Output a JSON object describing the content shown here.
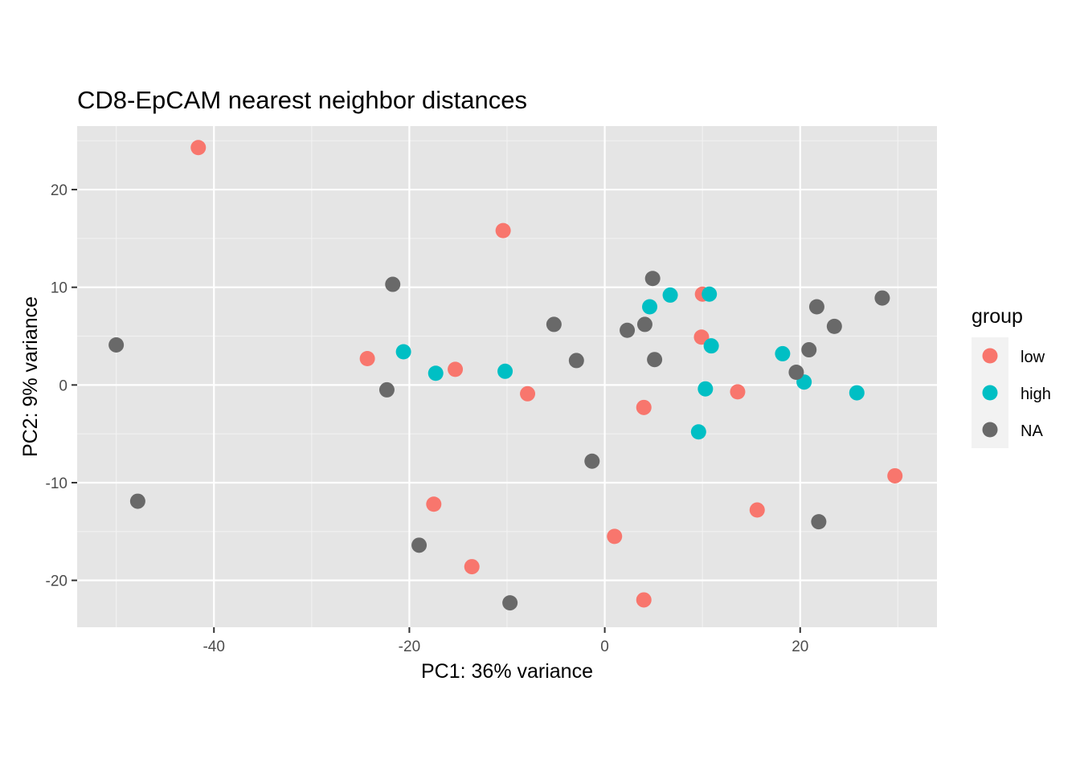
{
  "chart_data": {
    "type": "scatter",
    "title": "CD8-EpCAM nearest neighbor distances",
    "xlabel": "PC1: 36% variance",
    "ylabel": "PC2: 9% variance",
    "xlim": [
      -54,
      34
    ],
    "ylim": [
      -24.8,
      26.5
    ],
    "x_ticks": [
      -40,
      -20,
      0,
      20
    ],
    "y_ticks": [
      -20,
      -10,
      0,
      10,
      20
    ],
    "grid": true,
    "legend": {
      "title": "group",
      "position": "right"
    },
    "background": "#e5e5e5",
    "series": [
      {
        "name": "low",
        "color": "#f8766d",
        "points": [
          [
            -41.6,
            24.3
          ],
          [
            -10.4,
            15.8
          ],
          [
            -24.3,
            2.7
          ],
          [
            -15.3,
            1.6
          ],
          [
            -7.9,
            -0.9
          ],
          [
            10.0,
            9.3
          ],
          [
            9.9,
            4.9
          ],
          [
            13.6,
            -0.7
          ],
          [
            4.0,
            -2.3
          ],
          [
            -17.5,
            -12.2
          ],
          [
            -13.6,
            -18.6
          ],
          [
            1.0,
            -15.5
          ],
          [
            4.0,
            -22.0
          ],
          [
            15.6,
            -12.8
          ],
          [
            29.7,
            -9.3
          ]
        ]
      },
      {
        "name": "high",
        "color": "#00bfc4",
        "points": [
          [
            -20.6,
            3.4
          ],
          [
            -17.3,
            1.2
          ],
          [
            -10.2,
            1.4
          ],
          [
            4.6,
            8.0
          ],
          [
            6.7,
            9.2
          ],
          [
            10.7,
            9.3
          ],
          [
            10.9,
            4.0
          ],
          [
            10.3,
            -0.4
          ],
          [
            9.6,
            -4.8
          ],
          [
            18.2,
            3.2
          ],
          [
            20.4,
            0.3
          ],
          [
            25.8,
            -0.8
          ]
        ]
      },
      {
        "name": "NA",
        "color": "#696969",
        "points": [
          [
            -50.0,
            4.1
          ],
          [
            -47.8,
            -11.9
          ],
          [
            -21.7,
            10.3
          ],
          [
            -22.3,
            -0.5
          ],
          [
            -19.0,
            -16.4
          ],
          [
            -9.7,
            -22.3
          ],
          [
            -5.2,
            6.2
          ],
          [
            -2.9,
            2.5
          ],
          [
            -1.3,
            -7.8
          ],
          [
            2.3,
            5.6
          ],
          [
            4.1,
            6.2
          ],
          [
            4.9,
            10.9
          ],
          [
            5.1,
            2.6
          ],
          [
            19.6,
            1.3
          ],
          [
            20.9,
            3.6
          ],
          [
            21.7,
            8.0
          ],
          [
            23.5,
            6.0
          ],
          [
            28.4,
            8.9
          ],
          [
            21.9,
            -14.0
          ]
        ]
      }
    ]
  }
}
